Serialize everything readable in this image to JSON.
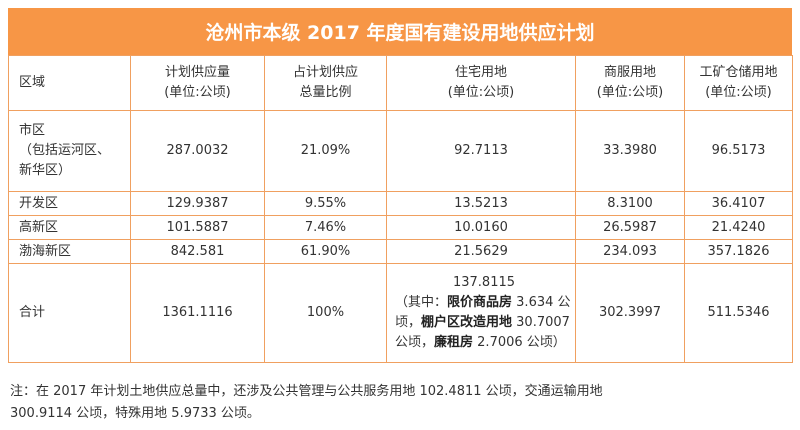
{
  "title": "沧州市本级 2017 年度国有建设用地供应计划",
  "headers": [
    {
      "line1": "区域",
      "line2": ""
    },
    {
      "line1": "计划供应量",
      "line2": "(单位:公顷)"
    },
    {
      "line1": "占计划供应",
      "line2": "总量比例"
    },
    {
      "line1": "住宅用地",
      "line2": "(单位:公顷)"
    },
    {
      "line1": "商服用地",
      "line2": "(单位:公顷)"
    },
    {
      "line1": "工矿仓储用地",
      "line2": "(单位:公顷)"
    }
  ],
  "rows": [
    {
      "region": [
        "市区",
        "（包括运河区、",
        "新华区）"
      ],
      "supply": "287.0032",
      "ratio": "21.09%",
      "residential": "92.7113",
      "commercial": "33.3980",
      "industrial": "96.5173"
    },
    {
      "region": [
        "开发区"
      ],
      "supply": "129.9387",
      "ratio": "9.55%",
      "residential": "13.5213",
      "commercial": "8.3100",
      "industrial": "36.4107"
    },
    {
      "region": [
        "高新区"
      ],
      "supply": "101.5887",
      "ratio": "7.46%",
      "residential": "10.0160",
      "commercial": "26.5987",
      "industrial": "21.4240"
    },
    {
      "region": [
        "渤海新区"
      ],
      "supply": "842.581",
      "ratio": "61.90%",
      "residential": "21.5629",
      "commercial": "234.093",
      "industrial": "357.1826"
    }
  ],
  "total": {
    "label": "合计",
    "supply": "1361.1116",
    "ratio": "100%",
    "residential_value": "137.8115",
    "residential_detail": {
      "p1": "（其中：",
      "b1": "限价商品房",
      "p2": " 3.634 公",
      "p3": "顷，",
      "b2": "棚户区改造用地",
      "p4": " 30.7007",
      "p5": "公顷，",
      "b3": "廉租房",
      "p6": " 2.7006 公顷）"
    },
    "commercial": "302.3997",
    "industrial": "511.5346"
  },
  "note": {
    "line1": "注：在 2017 年计划土地供应总量中，还涉及公共管理与公共服务用地 102.4811 公顷，交通运输用地",
    "line2": "300.9114 公顷，特殊用地 5.9733 公顷。"
  }
}
